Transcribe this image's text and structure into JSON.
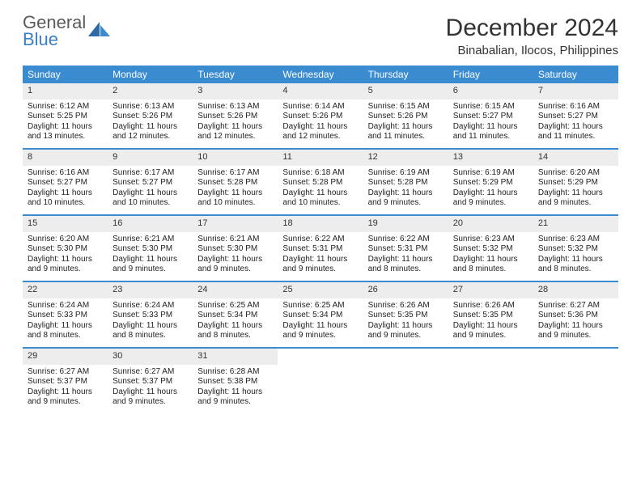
{
  "logo": {
    "word1": "General",
    "word2": "Blue"
  },
  "header": {
    "month": "December 2024",
    "location": "Binabalian, Ilocos, Philippines"
  },
  "colors": {
    "dow_bg": "#3b8bd0",
    "dow_fg": "#ffffff",
    "daynum_bg": "#ededed",
    "border": "#3b8bd0",
    "text": "#222222",
    "logo_gray": "#5a5a5a",
    "logo_blue": "#3b7fc4"
  },
  "layout": {
    "columns": 7,
    "rows": 5,
    "cell_font_size_pt": 7.5,
    "title_font_size_pt": 22
  },
  "dow": [
    "Sunday",
    "Monday",
    "Tuesday",
    "Wednesday",
    "Thursday",
    "Friday",
    "Saturday"
  ],
  "days": [
    {
      "n": "1",
      "sunrise": "Sunrise: 6:12 AM",
      "sunset": "Sunset: 5:25 PM",
      "daylight": "Daylight: 11 hours and 13 minutes."
    },
    {
      "n": "2",
      "sunrise": "Sunrise: 6:13 AM",
      "sunset": "Sunset: 5:26 PM",
      "daylight": "Daylight: 11 hours and 12 minutes."
    },
    {
      "n": "3",
      "sunrise": "Sunrise: 6:13 AM",
      "sunset": "Sunset: 5:26 PM",
      "daylight": "Daylight: 11 hours and 12 minutes."
    },
    {
      "n": "4",
      "sunrise": "Sunrise: 6:14 AM",
      "sunset": "Sunset: 5:26 PM",
      "daylight": "Daylight: 11 hours and 12 minutes."
    },
    {
      "n": "5",
      "sunrise": "Sunrise: 6:15 AM",
      "sunset": "Sunset: 5:26 PM",
      "daylight": "Daylight: 11 hours and 11 minutes."
    },
    {
      "n": "6",
      "sunrise": "Sunrise: 6:15 AM",
      "sunset": "Sunset: 5:27 PM",
      "daylight": "Daylight: 11 hours and 11 minutes."
    },
    {
      "n": "7",
      "sunrise": "Sunrise: 6:16 AM",
      "sunset": "Sunset: 5:27 PM",
      "daylight": "Daylight: 11 hours and 11 minutes."
    },
    {
      "n": "8",
      "sunrise": "Sunrise: 6:16 AM",
      "sunset": "Sunset: 5:27 PM",
      "daylight": "Daylight: 11 hours and 10 minutes."
    },
    {
      "n": "9",
      "sunrise": "Sunrise: 6:17 AM",
      "sunset": "Sunset: 5:27 PM",
      "daylight": "Daylight: 11 hours and 10 minutes."
    },
    {
      "n": "10",
      "sunrise": "Sunrise: 6:17 AM",
      "sunset": "Sunset: 5:28 PM",
      "daylight": "Daylight: 11 hours and 10 minutes."
    },
    {
      "n": "11",
      "sunrise": "Sunrise: 6:18 AM",
      "sunset": "Sunset: 5:28 PM",
      "daylight": "Daylight: 11 hours and 10 minutes."
    },
    {
      "n": "12",
      "sunrise": "Sunrise: 6:19 AM",
      "sunset": "Sunset: 5:28 PM",
      "daylight": "Daylight: 11 hours and 9 minutes."
    },
    {
      "n": "13",
      "sunrise": "Sunrise: 6:19 AM",
      "sunset": "Sunset: 5:29 PM",
      "daylight": "Daylight: 11 hours and 9 minutes."
    },
    {
      "n": "14",
      "sunrise": "Sunrise: 6:20 AM",
      "sunset": "Sunset: 5:29 PM",
      "daylight": "Daylight: 11 hours and 9 minutes."
    },
    {
      "n": "15",
      "sunrise": "Sunrise: 6:20 AM",
      "sunset": "Sunset: 5:30 PM",
      "daylight": "Daylight: 11 hours and 9 minutes."
    },
    {
      "n": "16",
      "sunrise": "Sunrise: 6:21 AM",
      "sunset": "Sunset: 5:30 PM",
      "daylight": "Daylight: 11 hours and 9 minutes."
    },
    {
      "n": "17",
      "sunrise": "Sunrise: 6:21 AM",
      "sunset": "Sunset: 5:30 PM",
      "daylight": "Daylight: 11 hours and 9 minutes."
    },
    {
      "n": "18",
      "sunrise": "Sunrise: 6:22 AM",
      "sunset": "Sunset: 5:31 PM",
      "daylight": "Daylight: 11 hours and 9 minutes."
    },
    {
      "n": "19",
      "sunrise": "Sunrise: 6:22 AM",
      "sunset": "Sunset: 5:31 PM",
      "daylight": "Daylight: 11 hours and 8 minutes."
    },
    {
      "n": "20",
      "sunrise": "Sunrise: 6:23 AM",
      "sunset": "Sunset: 5:32 PM",
      "daylight": "Daylight: 11 hours and 8 minutes."
    },
    {
      "n": "21",
      "sunrise": "Sunrise: 6:23 AM",
      "sunset": "Sunset: 5:32 PM",
      "daylight": "Daylight: 11 hours and 8 minutes."
    },
    {
      "n": "22",
      "sunrise": "Sunrise: 6:24 AM",
      "sunset": "Sunset: 5:33 PM",
      "daylight": "Daylight: 11 hours and 8 minutes."
    },
    {
      "n": "23",
      "sunrise": "Sunrise: 6:24 AM",
      "sunset": "Sunset: 5:33 PM",
      "daylight": "Daylight: 11 hours and 8 minutes."
    },
    {
      "n": "24",
      "sunrise": "Sunrise: 6:25 AM",
      "sunset": "Sunset: 5:34 PM",
      "daylight": "Daylight: 11 hours and 8 minutes."
    },
    {
      "n": "25",
      "sunrise": "Sunrise: 6:25 AM",
      "sunset": "Sunset: 5:34 PM",
      "daylight": "Daylight: 11 hours and 9 minutes."
    },
    {
      "n": "26",
      "sunrise": "Sunrise: 6:26 AM",
      "sunset": "Sunset: 5:35 PM",
      "daylight": "Daylight: 11 hours and 9 minutes."
    },
    {
      "n": "27",
      "sunrise": "Sunrise: 6:26 AM",
      "sunset": "Sunset: 5:35 PM",
      "daylight": "Daylight: 11 hours and 9 minutes."
    },
    {
      "n": "28",
      "sunrise": "Sunrise: 6:27 AM",
      "sunset": "Sunset: 5:36 PM",
      "daylight": "Daylight: 11 hours and 9 minutes."
    },
    {
      "n": "29",
      "sunrise": "Sunrise: 6:27 AM",
      "sunset": "Sunset: 5:37 PM",
      "daylight": "Daylight: 11 hours and 9 minutes."
    },
    {
      "n": "30",
      "sunrise": "Sunrise: 6:27 AM",
      "sunset": "Sunset: 5:37 PM",
      "daylight": "Daylight: 11 hours and 9 minutes."
    },
    {
      "n": "31",
      "sunrise": "Sunrise: 6:28 AM",
      "sunset": "Sunset: 5:38 PM",
      "daylight": "Daylight: 11 hours and 9 minutes."
    }
  ]
}
